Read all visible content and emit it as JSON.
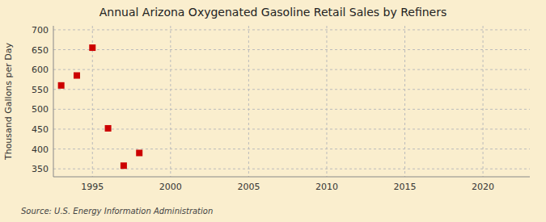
{
  "chart_data": {
    "type": "scatter",
    "title": "Annual Arizona Oxygenated Gasoline Retail Sales by Refiners",
    "ylabel": "Thousand Gallons per Day",
    "annotations": [
      "Source: U.S. Energy Information Administration"
    ],
    "x": [
      1993,
      1994,
      1995,
      1996,
      1997,
      1998
    ],
    "values": [
      560,
      585,
      655,
      452,
      358,
      390
    ],
    "color": "#cc0000",
    "marker": "square",
    "xlim": [
      1992.5,
      2023
    ],
    "ylim": [
      330,
      710
    ],
    "xticks": [
      1995,
      2000,
      2005,
      2010,
      2015,
      2020
    ],
    "yticks": [
      350,
      400,
      450,
      500,
      550,
      600,
      650,
      700
    ],
    "grid": true
  }
}
